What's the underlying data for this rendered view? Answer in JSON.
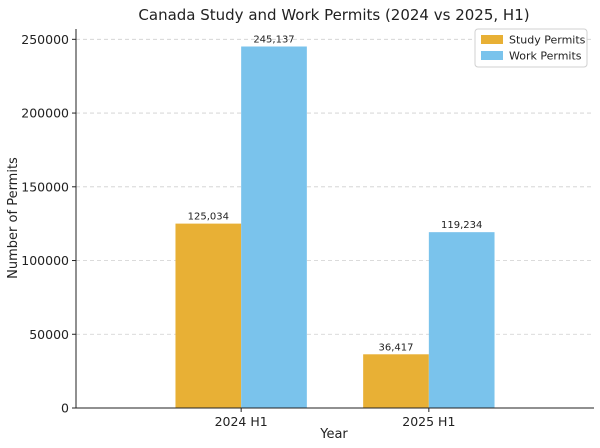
{
  "chart_data": {
    "type": "bar",
    "title": "Canada Study and Work Permits (2024 vs 2025, H1)",
    "xlabel": "Year",
    "ylabel": "Number of Permits",
    "categories": [
      "2024 H1",
      "2025 H1"
    ],
    "series": [
      {
        "name": "Study Permits",
        "color": "#E8B035",
        "values": [
          125034,
          36417
        ],
        "labels": [
          "125,034",
          "36,417"
        ]
      },
      {
        "name": "Work Permits",
        "color": "#7AC3EC",
        "values": [
          245137,
          119234
        ],
        "labels": [
          "245,137",
          "119,234"
        ]
      }
    ],
    "ylim": [
      0,
      257000
    ],
    "yticks": [
      0,
      50000,
      100000,
      150000,
      200000,
      250000
    ],
    "ytick_labels": [
      "0",
      "50000",
      "100000",
      "150000",
      "200000",
      "250000"
    ],
    "grid": true,
    "legend_position": "top-right"
  }
}
